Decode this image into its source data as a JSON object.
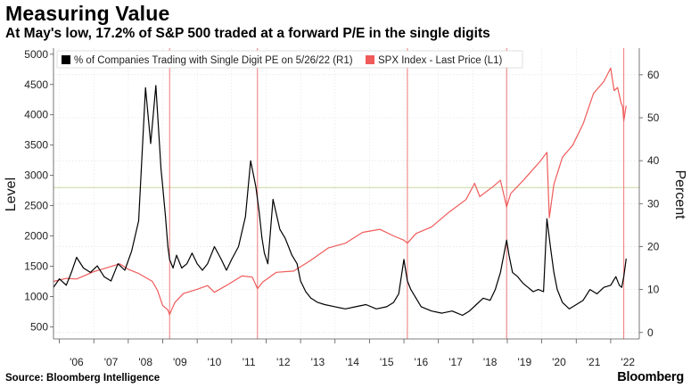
{
  "header": {
    "title": "Measuring Value",
    "subtitle": "At May's low, 17.2% of S&P 500 traded at a forward P/E in the single digits"
  },
  "footer": {
    "source": "Source: Bloomberg Intelligence",
    "brand": "Bloomberg"
  },
  "chart_data": {
    "type": "line",
    "title": "Measuring Value",
    "left_axis": {
      "label": "Level",
      "range": [
        300,
        5100
      ],
      "ticks": [
        500,
        1000,
        1500,
        2000,
        2500,
        3000,
        3500,
        4000,
        4500,
        5000
      ]
    },
    "right_axis": {
      "label": "Percent",
      "range": [
        -1.5,
        66.2
      ],
      "ticks": [
        0,
        10,
        20,
        30,
        40,
        50,
        60
      ]
    },
    "x_axis": {
      "range": [
        2005.83,
        2022.83
      ],
      "tick_positions": [
        2006.5,
        2007.5,
        2008.5,
        2009.5,
        2010.5,
        2011.5,
        2012.5,
        2013.5,
        2014.5,
        2015.5,
        2016.5,
        2017.5,
        2018.5,
        2019.5,
        2020.5,
        2021.5,
        2022.5
      ],
      "tick_labels": [
        "'06",
        "'07",
        "'08",
        "'09",
        "'10",
        "'11",
        "'12",
        "'13",
        "'14",
        "'15",
        "'16",
        "'17",
        "'18",
        "'19",
        "'20",
        "'21",
        "'22"
      ]
    },
    "legend": {
      "placement": "top-left"
    },
    "reference_line": {
      "axis": "left",
      "value": 2800,
      "color": "#c8d7a0"
    },
    "vertical_markers": {
      "x": [
        2009.2,
        2011.75,
        2016.1,
        2018.98,
        2022.38
      ],
      "color": "#f07878"
    },
    "series": [
      {
        "name": "% of Companies Trading with Single Digit PE on 5/26/22 (R1)",
        "axis": "right",
        "color": "#000000",
        "x": [
          2005.83,
          2006.0,
          2006.2,
          2006.35,
          2006.5,
          2006.7,
          2006.9,
          2007.1,
          2007.3,
          2007.5,
          2007.7,
          2007.9,
          2008.1,
          2008.3,
          2008.5,
          2008.65,
          2008.8,
          2008.95,
          2009.0,
          2009.08,
          2009.15,
          2009.2,
          2009.3,
          2009.4,
          2009.55,
          2009.7,
          2009.85,
          2010.0,
          2010.15,
          2010.3,
          2010.5,
          2010.7,
          2010.85,
          2011.0,
          2011.2,
          2011.4,
          2011.55,
          2011.7,
          2011.8,
          2011.88,
          2011.95,
          2012.05,
          2012.2,
          2012.4,
          2012.55,
          2012.65,
          2012.75,
          2012.9,
          2013.0,
          2013.15,
          2013.3,
          2013.5,
          2013.7,
          2014.0,
          2014.3,
          2014.6,
          2014.9,
          2015.2,
          2015.5,
          2015.7,
          2015.85,
          2016.0,
          2016.1,
          2016.2,
          2016.35,
          2016.5,
          2016.8,
          2017.1,
          2017.4,
          2017.7,
          2017.9,
          2018.1,
          2018.3,
          2018.5,
          2018.65,
          2018.8,
          2018.98,
          2019.05,
          2019.15,
          2019.3,
          2019.45,
          2019.6,
          2019.75,
          2019.9,
          2020.05,
          2020.15,
          2020.25,
          2020.35,
          2020.45,
          2020.6,
          2020.8,
          2021.0,
          2021.2,
          2021.4,
          2021.6,
          2021.8,
          2022.0,
          2022.15,
          2022.25,
          2022.32,
          2022.38,
          2022.45
        ],
        "values": [
          10.5,
          12.5,
          11,
          14,
          17.5,
          15,
          14,
          15.5,
          13,
          12,
          16,
          14.5,
          19,
          26,
          57,
          44,
          57.5,
          38,
          34,
          27,
          20,
          17,
          15,
          18,
          15,
          16,
          18.5,
          16,
          14.5,
          16,
          20,
          17,
          14.5,
          17,
          20,
          27,
          40,
          34,
          28,
          22,
          18.5,
          16,
          31,
          24,
          22,
          20,
          18,
          16,
          12,
          9.5,
          8,
          7,
          6.5,
          6,
          5.5,
          6,
          6.5,
          5.5,
          6,
          7,
          9,
          17,
          12,
          10,
          8,
          6,
          5,
          4.5,
          5,
          4,
          5,
          6.5,
          8,
          7.5,
          10,
          14,
          21.5,
          18,
          14,
          13,
          11.5,
          10.5,
          9.5,
          10,
          9.5,
          26.5,
          20,
          14,
          10,
          7,
          5.5,
          6.5,
          7.5,
          10,
          9,
          10.5,
          11,
          13,
          11,
          10.5,
          13,
          17.2
        ]
      },
      {
        "name": "SPX Index - Last Price (L1)",
        "axis": "left",
        "color": "#f05a5a",
        "x": [
          2005.83,
          2006.2,
          2006.5,
          2007.0,
          2007.4,
          2007.75,
          2008.0,
          2008.3,
          2008.55,
          2008.7,
          2008.85,
          2009.0,
          2009.15,
          2009.2,
          2009.35,
          2009.6,
          2010.0,
          2010.3,
          2010.5,
          2010.9,
          2011.3,
          2011.6,
          2011.75,
          2011.9,
          2012.3,
          2012.8,
          2013.3,
          2013.8,
          2014.3,
          2014.8,
          2015.3,
          2015.7,
          2016.0,
          2016.1,
          2016.35,
          2016.8,
          2017.3,
          2017.8,
          2018.05,
          2018.2,
          2018.6,
          2018.8,
          2018.98,
          2019.1,
          2019.5,
          2019.95,
          2020.15,
          2020.22,
          2020.35,
          2020.6,
          2020.9,
          2021.2,
          2021.5,
          2021.8,
          2022.0,
          2022.1,
          2022.2,
          2022.3,
          2022.35,
          2022.38,
          2022.42,
          2022.45
        ],
        "values": [
          1250,
          1300,
          1290,
          1410,
          1480,
          1540,
          1450,
          1380,
          1300,
          1250,
          1100,
          850,
          780,
          700,
          900,
          1050,
          1120,
          1180,
          1070,
          1200,
          1340,
          1320,
          1130,
          1240,
          1400,
          1420,
          1600,
          1800,
          1880,
          2060,
          2110,
          2000,
          1930,
          1880,
          2040,
          2150,
          2390,
          2600,
          2870,
          2650,
          2820,
          2920,
          2480,
          2700,
          2940,
          3230,
          3380,
          2300,
          2850,
          3300,
          3500,
          3850,
          4350,
          4550,
          4770,
          4400,
          4450,
          4200,
          4130,
          3900,
          4050,
          4150
        ]
      }
    ]
  }
}
